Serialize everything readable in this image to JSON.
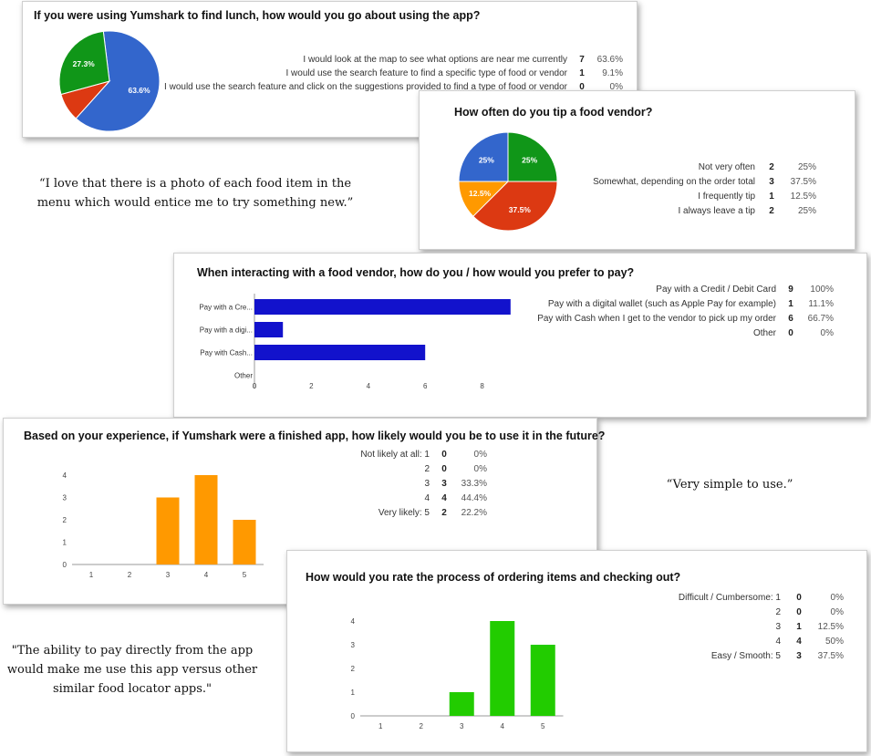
{
  "quotes": {
    "photo": [
      "“I love that there is a photo of each food item in the",
      "menu which would entice me to try something new.”"
    ],
    "simple": [
      "“Very simple to use.”"
    ],
    "pay": [
      "\"The ability to pay directly from the app",
      "would make me use this app versus other",
      "similar food locator apps.\""
    ]
  },
  "colors": {
    "blue": "#3366cc",
    "red": "#dc3912",
    "orange": "#ff9900",
    "green": "#109618",
    "bar_blue": "#1212cc",
    "bar_orange": "#ff9900",
    "bar_green": "#22cc00"
  },
  "chart_data": [
    {
      "type": "pie",
      "title": "If you were using Yumshark to find lunch, how would you go about using the app?",
      "slices": [
        {
          "label": "I would look at the map to see what options are near me currently",
          "count": 7,
          "percent": "63.6%",
          "value": 63.6,
          "color": "#3366cc",
          "slice_label": "63.6%"
        },
        {
          "label": "I would use the search feature to find a specific type of food or vendor",
          "count": 1,
          "percent": "9.1%",
          "value": 9.1,
          "color": "#dc3912",
          "slice_label": ""
        },
        {
          "label": "I would use the search feature and click on the suggestions provided to find a type of food or vendor",
          "count": 0,
          "percent": "0%",
          "value": 0,
          "color": "#ff9900",
          "slice_label": ""
        },
        {
          "label": "",
          "count": null,
          "percent": "",
          "value": 27.3,
          "color": "#109618",
          "slice_label": "27.3%"
        }
      ]
    },
    {
      "type": "pie",
      "title": "How often do you tip a food vendor?",
      "slices": [
        {
          "label": "Not very often",
          "count": 2,
          "percent": "25%",
          "value": 25,
          "color": "#109618",
          "slice_label": "25%"
        },
        {
          "label": "Somewhat, depending on the order total",
          "count": 3,
          "percent": "37.5%",
          "value": 37.5,
          "color": "#dc3912",
          "slice_label": "37.5%"
        },
        {
          "label": "I frequently tip",
          "count": 1,
          "percent": "12.5%",
          "value": 12.5,
          "color": "#ff9900",
          "slice_label": "12.5%"
        },
        {
          "label": "I always leave a tip",
          "count": 2,
          "percent": "25%",
          "value": 25,
          "color": "#3366cc",
          "slice_label": "25%"
        }
      ]
    },
    {
      "type": "bar",
      "orientation": "horizontal",
      "title": "When interacting with a food vendor, how do you / how would you prefer to pay?",
      "categories": [
        "Pay with a Cre...",
        "Pay with a digi...",
        "Pay with Cash...",
        "Other"
      ],
      "values": [
        9,
        1,
        6,
        0
      ],
      "xlim": [
        0,
        9
      ],
      "xticks": [
        "0",
        "2",
        "4",
        "6",
        "8"
      ],
      "color": "#1212cc",
      "legend": [
        {
          "label": "Pay with a Credit / Debit Card",
          "count": 9,
          "percent": "100%"
        },
        {
          "label": "Pay with a digital wallet (such as Apple Pay for example)",
          "count": 1,
          "percent": "11.1%"
        },
        {
          "label": "Pay with Cash when I get to the vendor to pick up my order",
          "count": 6,
          "percent": "66.7%"
        },
        {
          "label": "Other",
          "count": 0,
          "percent": "0%"
        }
      ]
    },
    {
      "type": "bar",
      "title": "Based on your experience, if Yumshark were a finished app, how likely would you be to use it in the future?",
      "categories": [
        "1",
        "2",
        "3",
        "4",
        "5"
      ],
      "values": [
        0,
        0,
        3,
        4,
        2
      ],
      "ylim": [
        0,
        4
      ],
      "yticks": [
        "0",
        "1",
        "2",
        "3",
        "4"
      ],
      "color": "#ff9900",
      "legend": [
        {
          "label": "Not likely at all: 1",
          "count": 0,
          "percent": "0%"
        },
        {
          "label": "2",
          "count": 0,
          "percent": "0%"
        },
        {
          "label": "3",
          "count": 3,
          "percent": "33.3%"
        },
        {
          "label": "4",
          "count": 4,
          "percent": "44.4%"
        },
        {
          "label": "Very likely: 5",
          "count": 2,
          "percent": "22.2%"
        }
      ]
    },
    {
      "type": "bar",
      "title": "How would you rate the process of ordering items and checking out?",
      "categories": [
        "1",
        "2",
        "3",
        "4",
        "5"
      ],
      "values": [
        0,
        0,
        1,
        4,
        3
      ],
      "ylim": [
        0,
        4
      ],
      "yticks": [
        "0",
        "1",
        "2",
        "3",
        "4"
      ],
      "color": "#22cc00",
      "legend": [
        {
          "label": "Difficult / Cumbersome: 1",
          "count": 0,
          "percent": "0%"
        },
        {
          "label": "2",
          "count": 0,
          "percent": "0%"
        },
        {
          "label": "3",
          "count": 1,
          "percent": "12.5%"
        },
        {
          "label": "4",
          "count": 4,
          "percent": "50%"
        },
        {
          "label": "Easy / Smooth: 5",
          "count": 3,
          "percent": "37.5%"
        }
      ]
    }
  ]
}
